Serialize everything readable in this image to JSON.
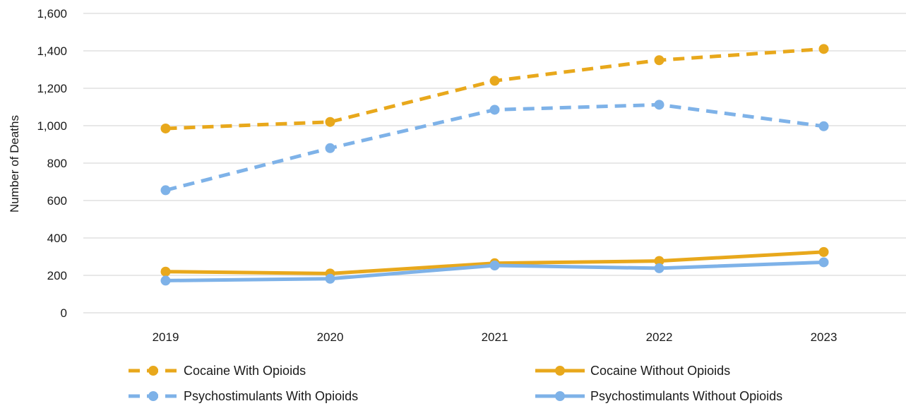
{
  "chart_data": {
    "type": "line",
    "title": "",
    "xlabel": "",
    "ylabel": "Number of Deaths",
    "ylim": [
      0,
      1600
    ],
    "yticks": [
      0,
      200,
      400,
      600,
      800,
      1000,
      1200,
      1400,
      1600
    ],
    "ytick_labels": [
      "0",
      "200",
      "400",
      "600",
      "800",
      "1,000",
      "1,200",
      "1,400",
      "1,600"
    ],
    "categories": [
      "2019",
      "2020",
      "2021",
      "2022",
      "2023"
    ],
    "grid": true,
    "legend_position": "bottom",
    "series": [
      {
        "name": "Cocaine With Opioids",
        "values": [
          985,
          1020,
          1240,
          1350,
          1410
        ],
        "color": "#E8A81C",
        "dashed": true
      },
      {
        "name": "Cocaine Without Opioids",
        "values": [
          220,
          210,
          265,
          277,
          325
        ],
        "color": "#E8A81C",
        "dashed": false
      },
      {
        "name": "Psychostimulants With Opioids",
        "values": [
          655,
          880,
          1085,
          1112,
          997
        ],
        "color": "#7EB2E8",
        "dashed": true
      },
      {
        "name": "Psychostimulants Without Opioids",
        "values": [
          172,
          182,
          253,
          238,
          270
        ],
        "color": "#7EB2E8",
        "dashed": false
      }
    ]
  }
}
